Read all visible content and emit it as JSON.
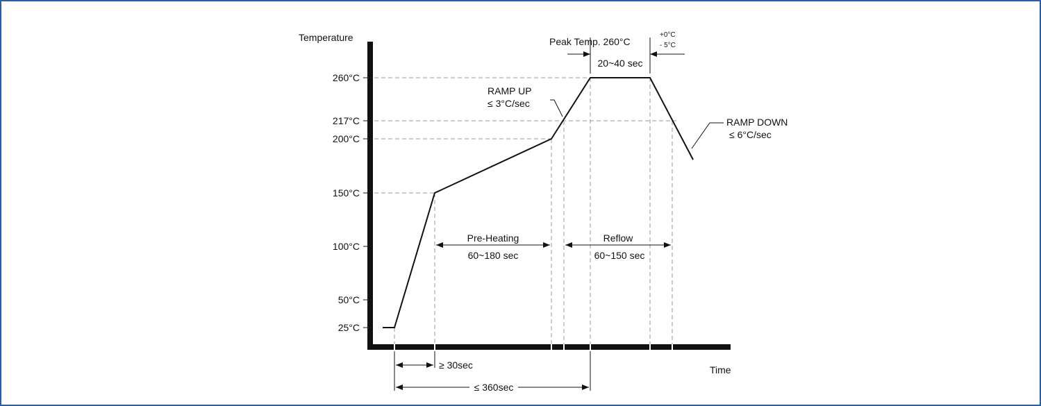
{
  "chart_data": {
    "type": "line",
    "title": "",
    "ylabel": "Temperature",
    "xlabel": "Time",
    "y_ticks": [
      "260°C",
      "217°C",
      "200°C",
      "150°C",
      "100°C",
      "50°C",
      "25°C"
    ],
    "profile_points": [
      {
        "label": "start",
        "temp_c": 25
      },
      {
        "label": "ramp start",
        "temp_c": 25
      },
      {
        "label": "pre-heat start",
        "temp_c": 150
      },
      {
        "label": "pre-heat end",
        "temp_c": 200
      },
      {
        "label": "reach peak",
        "temp_c": 260
      },
      {
        "label": "leave peak",
        "temp_c": 260
      },
      {
        "label": "ramp down end",
        "temp_c": 180
      }
    ],
    "peak": {
      "label": "Peak Temp. 260°C",
      "tol_plus": "+0°C",
      "tol_minus": "- 5°C",
      "time": "20~40 sec"
    },
    "ramp_up": {
      "line1": "RAMP UP",
      "line2": "≤ 3°C/sec"
    },
    "ramp_down": {
      "line1": "RAMP DOWN",
      "line2": "≤ 6°C/sec"
    },
    "pre_heating": {
      "label": "Pre-Heating",
      "time": "60~180 sec"
    },
    "reflow": {
      "label": "Reflow",
      "time": "60~150 sec"
    },
    "min_time": "≥ 30sec",
    "max_time": "≤ 360sec"
  }
}
